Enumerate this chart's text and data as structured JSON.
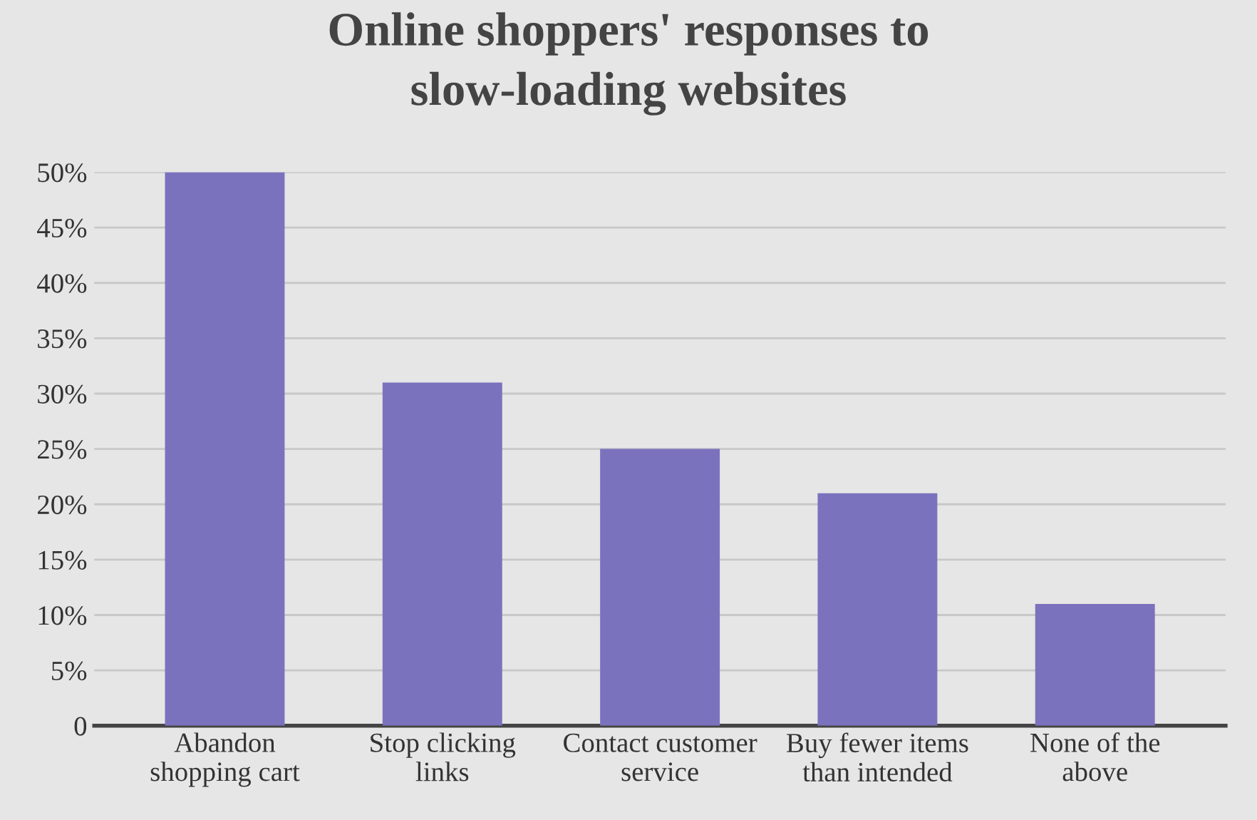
{
  "chart_data": {
    "type": "bar",
    "title": "Online shoppers' responses to\nslow-loading websites",
    "categories": [
      "Abandon\nshopping cart",
      "Stop clicking\nlinks",
      "Contact customer\nservice",
      "Buy fewer items\nthan intended",
      "None of the\nabove"
    ],
    "values": [
      50,
      31,
      25,
      21,
      11
    ],
    "color": "#7b72be",
    "ylim": [
      0,
      50
    ],
    "yticks": [
      0,
      {
        "value": 5,
        "label": "5%"
      },
      {
        "value": 10,
        "label": "10%"
      },
      {
        "value": 15,
        "label": "15%"
      },
      {
        "value": 20,
        "label": "20%"
      },
      {
        "value": 25,
        "label": "25%"
      },
      {
        "value": 30,
        "label": "30%"
      },
      {
        "value": 35,
        "label": "35%"
      },
      {
        "value": 40,
        "label": "40%"
      },
      {
        "value": 45,
        "label": "45%"
      },
      {
        "value": 50,
        "label": "50%"
      }
    ],
    "grid": "y",
    "legend": false
  }
}
